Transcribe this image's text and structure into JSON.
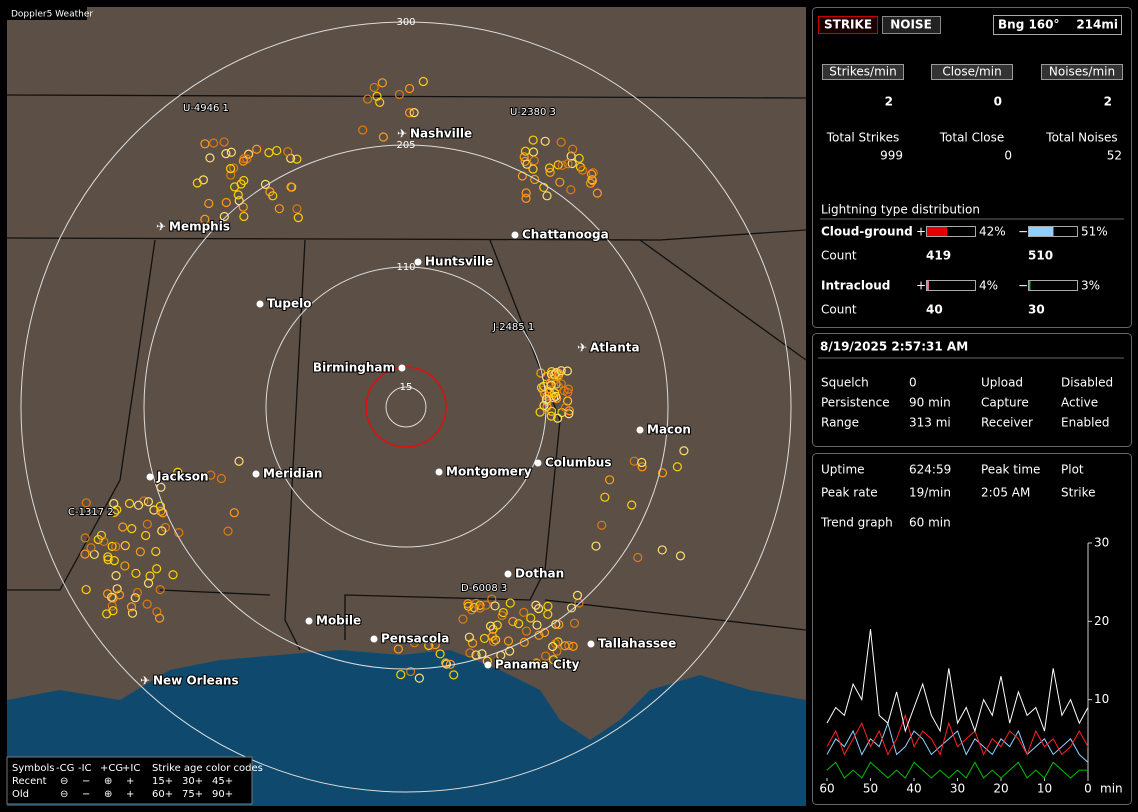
{
  "window_title": "Doppler5 Weather",
  "map": {
    "range_labels": [
      "300",
      "205",
      "110",
      "15"
    ],
    "cities": [
      "Nashville",
      "Memphis",
      "Chattanooga",
      "Huntsville",
      "Tupelo",
      "Atlanta",
      "Birmingham",
      "Macon",
      "Jackson",
      "Meridian",
      "Montgomery",
      "Columbus",
      "Dothan",
      "Mobile",
      "Pensacola",
      "Tallahassee",
      "Panama City",
      "New Orleans"
    ],
    "storms": [
      "U-4946 1",
      "U-2380 3",
      "J-2485 1",
      "C-1317 2",
      "D-6008 3"
    ],
    "legend": {
      "symbols_label": "Symbols",
      "headers": [
        "-CG",
        "-IC",
        "+CG",
        "+IC"
      ],
      "rows": [
        "Recent",
        "Old"
      ],
      "age_title": "Strike age color codes",
      "ages": [
        [
          "15+",
          "30+",
          "45+"
        ],
        [
          "60+",
          "75+",
          "90+"
        ]
      ]
    }
  },
  "status": {
    "strike": "STRIKE",
    "noise": "NOISE",
    "bearing": "Bng 160°",
    "distance": "214mi",
    "rates": [
      {
        "label": "Strikes/min",
        "value": 2
      },
      {
        "label": "Close/min",
        "value": 0
      },
      {
        "label": "Noises/min",
        "value": 2
      }
    ],
    "totals": [
      {
        "label": "Total Strikes",
        "value": 999
      },
      {
        "label": "Total Close",
        "value": 0
      },
      {
        "label": "Total Noises",
        "value": 52
      }
    ]
  },
  "distribution": {
    "title": "Lightning type distribution",
    "count_label": "Count",
    "types": [
      {
        "name": "Cloud-ground",
        "pos_sign": "+",
        "pos": {
          "value": 42,
          "label": "42%"
        },
        "neg_sign": "−",
        "neg": {
          "value": 51,
          "label": "51%"
        },
        "pos_count": 419,
        "neg_count": 510
      },
      {
        "name": "Intracloud",
        "pos_sign": "+",
        "pos": {
          "value": 4,
          "label": "4%"
        },
        "neg_sign": "−",
        "neg": {
          "value": 3,
          "label": "3%"
        },
        "pos_count": 40,
        "neg_count": 30
      }
    ]
  },
  "clock": "8/19/2025 2:57:31 AM",
  "settings": [
    [
      "Squelch",
      0,
      "Upload",
      "Disabled"
    ],
    [
      "Persistence",
      "90 min",
      "Capture",
      "Active"
    ],
    [
      "Range",
      "313 mi",
      "Receiver",
      "Enabled"
    ]
  ],
  "stats": [
    [
      "Uptime",
      "624:59",
      "Peak time",
      "Plot"
    ],
    [
      "Peak rate",
      "19/min",
      "2:05 AM",
      "Strike"
    ]
  ],
  "trend": {
    "label": "Trend graph",
    "window": "60 min"
  },
  "chart_data": {
    "type": "line",
    "x_label": "min",
    "x": [
      60,
      58,
      56,
      54,
      52,
      50,
      48,
      46,
      44,
      42,
      40,
      38,
      36,
      34,
      32,
      30,
      28,
      26,
      24,
      22,
      20,
      18,
      16,
      14,
      12,
      10,
      8,
      6,
      4,
      2,
      0
    ],
    "xlim": [
      60,
      0
    ],
    "xticks": [
      60,
      50,
      40,
      30,
      20,
      10,
      0
    ],
    "ylim": [
      0,
      30
    ],
    "yticks": [
      10,
      20,
      30
    ],
    "series": [
      {
        "color": "#ffffff",
        "values": [
          7,
          9,
          8,
          12,
          10,
          19,
          8,
          7,
          11,
          6,
          9,
          12,
          8,
          6,
          14,
          7,
          9,
          6,
          10,
          8,
          13,
          7,
          11,
          8,
          9,
          6,
          14,
          8,
          10,
          7,
          9
        ]
      },
      {
        "color": "#ff2020",
        "values": [
          4,
          6,
          3,
          5,
          7,
          4,
          6,
          3,
          5,
          8,
          4,
          6,
          5,
          3,
          7,
          4,
          5,
          6,
          3,
          5,
          4,
          6,
          5,
          3,
          6,
          4,
          5,
          3,
          4,
          6,
          4
        ]
      },
      {
        "color": "#8fd0ff",
        "values": [
          3,
          5,
          4,
          6,
          3,
          5,
          4,
          7,
          3,
          4,
          6,
          5,
          3,
          4,
          5,
          6,
          3,
          5,
          4,
          3,
          5,
          4,
          6,
          3,
          4,
          5,
          3,
          4,
          5,
          3,
          2
        ]
      },
      {
        "color": "#00c000",
        "values": [
          1,
          2,
          0,
          1,
          0,
          2,
          1,
          0,
          1,
          0,
          2,
          1,
          0,
          1,
          0,
          1,
          0,
          2,
          0,
          1,
          0,
          1,
          2,
          0,
          1,
          0,
          2,
          1,
          0,
          1,
          1
        ]
      }
    ]
  }
}
